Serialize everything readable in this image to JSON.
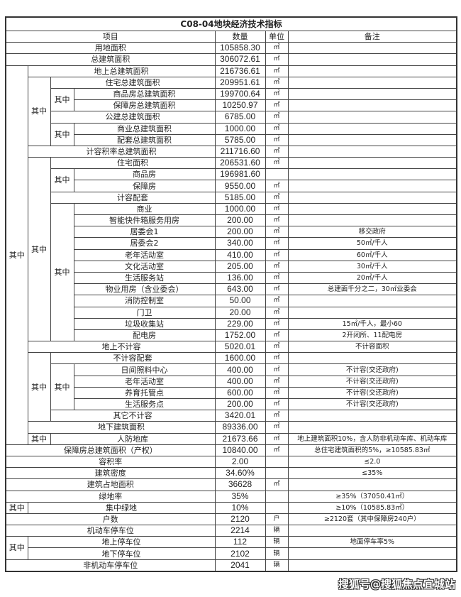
{
  "title": "C08-04地块经济技术指标",
  "headers": {
    "item": "项目",
    "value": "数量",
    "unit": "单位",
    "note": "备注"
  },
  "qizhong_label": "其中",
  "rows": [
    {
      "label": "用地面积",
      "value": "105858.30",
      "unit": "㎡",
      "note": ""
    },
    {
      "label": "总建筑面积",
      "value": "306072.61",
      "unit": "㎡",
      "note": ""
    },
    {
      "label": "地上总建筑面积",
      "value": "216736.61",
      "unit": "㎡",
      "note": ""
    },
    {
      "label": "住宅总建筑面积",
      "value": "209951.61",
      "unit": "㎡",
      "note": ""
    },
    {
      "label": "商品房总建筑面积",
      "value": "199700.64",
      "unit": "㎡",
      "note": ""
    },
    {
      "label": "保障房总建筑面积",
      "value": "10250.97",
      "unit": "㎡",
      "note": ""
    },
    {
      "label": "公建总建筑面积",
      "value": "6785.00",
      "unit": "㎡",
      "note": ""
    },
    {
      "label": "商业总建筑面积",
      "value": "1000.00",
      "unit": "㎡",
      "note": ""
    },
    {
      "label": "配套总建筑面积",
      "value": "5785.00",
      "unit": "㎡",
      "note": ""
    },
    {
      "label": "计容积率总建筑面积",
      "value": "211716.60",
      "unit": "㎡",
      "note": ""
    },
    {
      "label": "住宅面积",
      "value": "206531.60",
      "unit": "㎡",
      "note": ""
    },
    {
      "label": "商品房",
      "value": "196981.60",
      "unit": "",
      "note": ""
    },
    {
      "label": "保障房",
      "value": "9550.00",
      "unit": "㎡",
      "note": ""
    },
    {
      "label": "计容配套",
      "value": "5185.00",
      "unit": "㎡",
      "note": ""
    },
    {
      "label": "商业",
      "value": "1000.00",
      "unit": "㎡",
      "note": ""
    },
    {
      "label": "智能快件箱服务用房",
      "value": "200.00",
      "unit": "㎡",
      "note": ""
    },
    {
      "label": "居委会1",
      "value": "200.00",
      "unit": "㎡",
      "note": "移交政府"
    },
    {
      "label": "居委会2",
      "value": "340.00",
      "unit": "㎡",
      "note": "50㎡/千人"
    },
    {
      "label": "老年活动室",
      "value": "410.00",
      "unit": "㎡",
      "note": "60㎡/千人"
    },
    {
      "label": "文化活动室",
      "value": "205.00",
      "unit": "㎡",
      "note": "30㎡/千人"
    },
    {
      "label": "生活服务站",
      "value": "136.00",
      "unit": "㎡",
      "note": "20㎡/千人"
    },
    {
      "label": "物业用房（含业委会）",
      "value": "643.00",
      "unit": "㎡",
      "note": "总建面千分之二，30㎡业委会"
    },
    {
      "label": "消防控制室",
      "value": "50.00",
      "unit": "㎡",
      "note": ""
    },
    {
      "label": "门卫",
      "value": "20.00",
      "unit": "㎡",
      "note": ""
    },
    {
      "label": "垃圾收集站",
      "value": "229.00",
      "unit": "㎡",
      "note": "15㎡/千人，最小60"
    },
    {
      "label": "配电房",
      "value": "1752.00",
      "unit": "㎡",
      "note": "2开闭所、11配电房"
    },
    {
      "label": "地上不计容",
      "value": "5020.01",
      "unit": "㎡",
      "note": "不计容面积"
    },
    {
      "label": "不计容配套",
      "value": "1600.00",
      "unit": "㎡",
      "note": ""
    },
    {
      "label": "日间照料中心",
      "value": "400.00",
      "unit": "㎡",
      "note": "不计容(交还政府)"
    },
    {
      "label": "老年活动室",
      "value": "400.00",
      "unit": "㎡",
      "note": "不计容(交还政府)"
    },
    {
      "label": "养育托管点",
      "value": "600.00",
      "unit": "㎡",
      "note": "不计容(交还政府)"
    },
    {
      "label": "生活服务点",
      "value": "200.00",
      "unit": "㎡",
      "note": "不计容(交还政府)"
    },
    {
      "label": "其它不计容",
      "value": "3420.01",
      "unit": "㎡",
      "note": ""
    },
    {
      "label": "地下建筑面积",
      "value": "89336.00",
      "unit": "㎡",
      "note": ""
    },
    {
      "label": "人防地库",
      "value": "21673.66",
      "unit": "㎡",
      "note": "地上建筑面积10%，含人防非机动车库、机动车库"
    },
    {
      "label": "保障房总建筑面积（产权）",
      "value": "10840.00",
      "unit": "㎡",
      "note": "总住宅建筑面积的5%，≥10585.83㎡"
    },
    {
      "label": "容积率",
      "value": "2.00",
      "unit": "",
      "note": "≤2.0"
    },
    {
      "label": "建筑密度",
      "value": "34.60%",
      "unit": "",
      "note": "≤35%"
    },
    {
      "label": "建筑占地面积",
      "value": "36628",
      "unit": "㎡",
      "note": ""
    },
    {
      "label": "绿地率",
      "value": "35%",
      "unit": "",
      "note": "≥35%（37050.41㎡）"
    },
    {
      "label": "集中绿地",
      "value": "10%",
      "unit": "",
      "note": "≥10%（10585.83㎡）"
    },
    {
      "label": "户数",
      "value": "2120",
      "unit": "户",
      "note": "≥2120套（其中保障房240户）"
    },
    {
      "label": "机动车停车位",
      "value": "2214",
      "unit": "辆",
      "note": ""
    },
    {
      "label": "地上停车位",
      "value": "112",
      "unit": "辆",
      "note": "地面停车率5%"
    },
    {
      "label": "地下停车位",
      "value": "2102",
      "unit": "辆",
      "note": ""
    },
    {
      "label": "非机动车停车位",
      "value": "2041",
      "unit": "辆",
      "note": ""
    }
  ],
  "watermark": "搜狐号@搜狐焦点宜城站"
}
